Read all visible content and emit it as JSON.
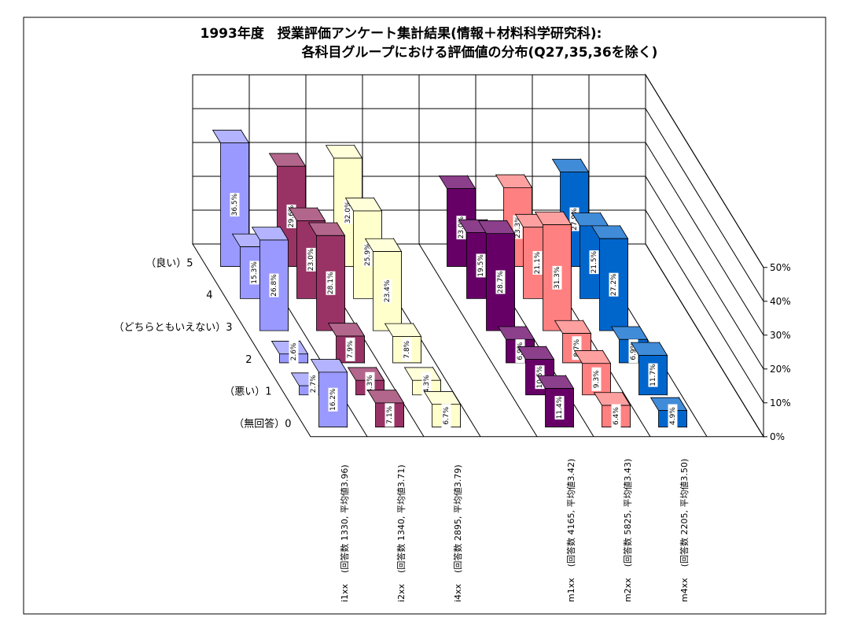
{
  "chart_data": {
    "type": "bar3d",
    "title": "1993年度　授業評価アンケート集計結果(情報＋材料科学研究科):",
    "subtitle": "各科目グループにおける評価値の分布(Q27,35,36を除く)",
    "z_categories": [
      "（良い）5",
      "4",
      "（どちらともいえない）3",
      "2",
      "（悪い）1",
      "（無回答）0"
    ],
    "series": [
      {
        "name": "i1xx    (回答数 1330, 平均値3.96)",
        "color": "#9999ff",
        "values": [
          36.5,
          15.3,
          26.8,
          2.6,
          2.7,
          16.2
        ],
        "value_labels": [
          "36.5%",
          "15.3%",
          "26.8%",
          "2.6%",
          "2.7%",
          "16.2%"
        ]
      },
      {
        "name": "i2xx    (回答数 1340, 平均値3.71)",
        "color": "#993366",
        "values": [
          29.6,
          23.0,
          28.1,
          7.9,
          4.3,
          7.1
        ],
        "value_labels": [
          "29.6%",
          "23.0%",
          "28.1%",
          "7.9%",
          "4.3%",
          "7.1%"
        ]
      },
      {
        "name": "i4xx    (回答数 2895, 平均値3.79)",
        "color": "#ffffcc",
        "values": [
          32.0,
          25.9,
          23.4,
          7.8,
          4.3,
          6.7
        ],
        "value_labels": [
          "32.0%",
          "25.9%",
          "23.4%",
          "7.8%",
          "4.3%",
          "6.7%"
        ]
      },
      {
        "name": "m1xx    (回答数 4165, 平均値3.42)",
        "color": "#660066",
        "values": [
          23.0,
          19.5,
          28.7,
          6.9,
          10.5,
          11.4
        ],
        "value_labels": [
          "23.0%",
          "19.5%",
          "28.7%",
          "6.9%",
          "10.5%",
          "11.4%"
        ]
      },
      {
        "name": "m2xx    (回答数 5825, 平均値3.43)",
        "color": "#ff8080",
        "values": [
          23.3,
          21.1,
          31.3,
          8.7,
          9.3,
          6.4
        ],
        "value_labels": [
          "23.3%",
          "21.1%",
          "31.3%",
          "8.7%",
          "9.3%",
          "6.4%"
        ]
      },
      {
        "name": "m4xx    (回答数 2205, 平均値3.50)",
        "color": "#0066cc",
        "values": [
          27.9,
          21.5,
          27.2,
          6.9,
          11.7,
          4.9
        ],
        "value_labels": [
          "27.9%",
          "21.5%",
          "27.2%",
          "6.9%",
          "11.7%",
          "4.9%"
        ]
      }
    ],
    "ylim": [
      0,
      50
    ],
    "yticks": [
      {
        "value": 0,
        "label": "0%"
      },
      {
        "value": 10,
        "label": "10%"
      },
      {
        "value": 20,
        "label": "20%"
      },
      {
        "value": 30,
        "label": "30%"
      },
      {
        "value": 40,
        "label": "40%"
      },
      {
        "value": 50,
        "label": "50%"
      }
    ],
    "grid": true
  }
}
